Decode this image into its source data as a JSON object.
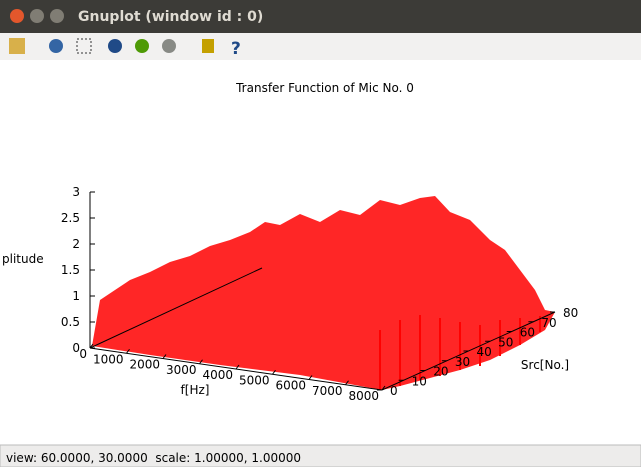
{
  "window": {
    "title": "Gnuplot (window id : 0)"
  },
  "plot": {
    "title": "Transfer Function of Mic No. 0",
    "xlabel": "f[Hz]",
    "ylabel": "Src[No.]",
    "zlabel": "plitude",
    "xlim": [
      0,
      8000
    ],
    "xticks": [
      0,
      1000,
      2000,
      3000,
      4000,
      5000,
      6000,
      7000,
      8000
    ],
    "ylim": [
      0,
      80
    ],
    "yticks": [
      0,
      10,
      20,
      30,
      40,
      50,
      60,
      70,
      80
    ],
    "zlim": [
      0,
      3
    ],
    "zticks": [
      0,
      0.5,
      1,
      1.5,
      2,
      2.5,
      3
    ]
  },
  "status": "view: 60.0000, 30.0000  scale: 1.00000, 1.00000"
}
